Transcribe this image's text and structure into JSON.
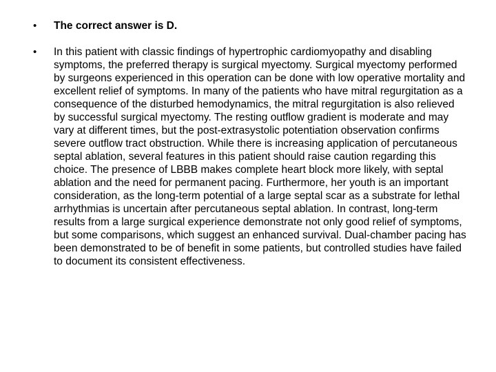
{
  "slide": {
    "background_color": "#ffffff",
    "text_color": "#000000",
    "font_family": "Arial",
    "bullets": [
      {
        "kind": "heading",
        "text": "The correct answer is D.",
        "bold": true,
        "font_size_pt": 12
      },
      {
        "kind": "paragraph",
        "text": "In this patient with classic findings of hypertrophic cardiomyopathy and disabling symptoms, the preferred therapy is surgical myectomy. Surgical myectomy performed by surgeons experienced in this operation can be done with low operative mortality and excellent relief of symptoms. In many of the patients who have mitral regurgitation as a consequence of the disturbed hemodynamics, the mitral regurgitation is also relieved by successful surgical myectomy. The resting outflow gradient is moderate and may vary at different times, but the post-extrasystolic potentiation observation confirms severe outflow tract obstruction. While there is increasing application of percutaneous septal ablation, several features in this patient should raise caution regarding this choice. The presence of LBBB makes complete heart block more likely, with septal ablation and the need for permanent pacing. Furthermore, her youth is an important consideration, as the long-term potential of a large septal scar as a substrate for lethal arrhythmias is uncertain after percutaneous septal ablation. In contrast, long-term results from a large surgical experience demonstrate not only good relief of symptoms, but some comparisons, which suggest an enhanced survival. Dual-chamber pacing has been demonstrated to be of benefit in some patients, but controlled studies have failed to document its consistent effectiveness.",
        "bold": false,
        "font_size_pt": 12
      }
    ]
  }
}
